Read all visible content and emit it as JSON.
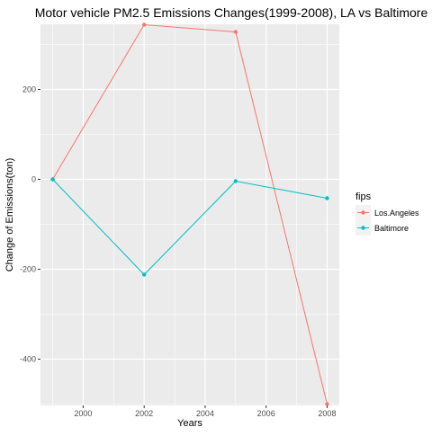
{
  "chart_data": {
    "type": "line",
    "title": "Motor vehicle PM2.5 Emissions Changes(1999-2008), LA vs Baltimore",
    "xlabel": "Years",
    "ylabel": "Change of Emissions(ton)",
    "x": [
      1999,
      2002,
      2005,
      2008
    ],
    "xlim": [
      1998.6,
      2008.4
    ],
    "ylim": [
      -503,
      345
    ],
    "x_ticks": [
      2000,
      2002,
      2004,
      2006,
      2008
    ],
    "y_ticks": [
      -400,
      -200,
      0,
      200
    ],
    "grid": true,
    "legend": {
      "title": "fips",
      "placement": "right"
    },
    "series": [
      {
        "name": "Los.Angeles",
        "color": "#F8766D",
        "values": [
          0,
          344,
          328,
          -500
        ]
      },
      {
        "name": "Baltimore",
        "color": "#00BFC4",
        "values": [
          0,
          -212,
          -4,
          -42
        ]
      }
    ],
    "panel_color": "#EBEBEB",
    "grid_color": "#FFFFFF"
  }
}
